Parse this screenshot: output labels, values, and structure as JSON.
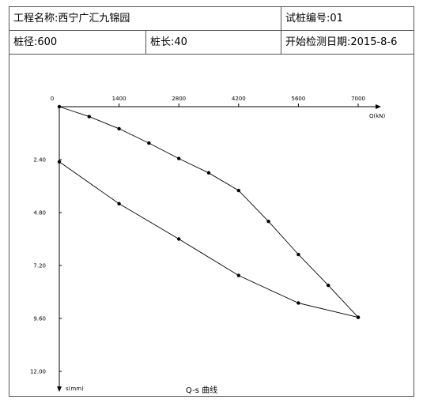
{
  "header": {
    "project_label": "工程名称:",
    "project_name": "西宁广汇九锦园",
    "pile_no_label": "试桩编号:",
    "pile_no": "01",
    "diameter_label": "桩径:",
    "diameter": "600",
    "length_label": "桩长:",
    "length": "40",
    "start_date_label": "开始检测日期:",
    "start_date": "2015-8-6"
  },
  "chart_data": {
    "type": "line",
    "title": "Q-s 曲线",
    "xlabel": "Q(kN)",
    "ylabel": "s(mm)",
    "xlim": [
      0,
      7000
    ],
    "ylim": [
      0,
      12.0
    ],
    "y_inverted": true,
    "x_ticks": [
      "0",
      "1400",
      "2800",
      "4200",
      "5600",
      "7000"
    ],
    "y_ticks": [
      "2.40",
      "4.80",
      "7.20",
      "9.60",
      "12.00"
    ],
    "grid": false,
    "series": [
      {
        "values": [
          {
            "x": 0,
            "y": 0.0
          },
          {
            "x": 700,
            "y": 0.45
          },
          {
            "x": 1400,
            "y": 1.0
          },
          {
            "x": 2100,
            "y": 1.65
          },
          {
            "x": 2800,
            "y": 2.35
          },
          {
            "x": 3500,
            "y": 3.0
          },
          {
            "x": 4200,
            "y": 3.8
          },
          {
            "x": 4900,
            "y": 5.2
          },
          {
            "x": 5600,
            "y": 6.7
          },
          {
            "x": 6300,
            "y": 8.1
          },
          {
            "x": 7000,
            "y": 9.55
          }
        ]
      },
      {
        "values": [
          {
            "x": 7000,
            "y": 9.55
          },
          {
            "x": 5600,
            "y": 8.9
          },
          {
            "x": 4200,
            "y": 7.65
          },
          {
            "x": 2800,
            "y": 6.0
          },
          {
            "x": 1400,
            "y": 4.4
          },
          {
            "x": 0,
            "y": 2.5
          }
        ]
      }
    ],
    "color": "#000000"
  }
}
